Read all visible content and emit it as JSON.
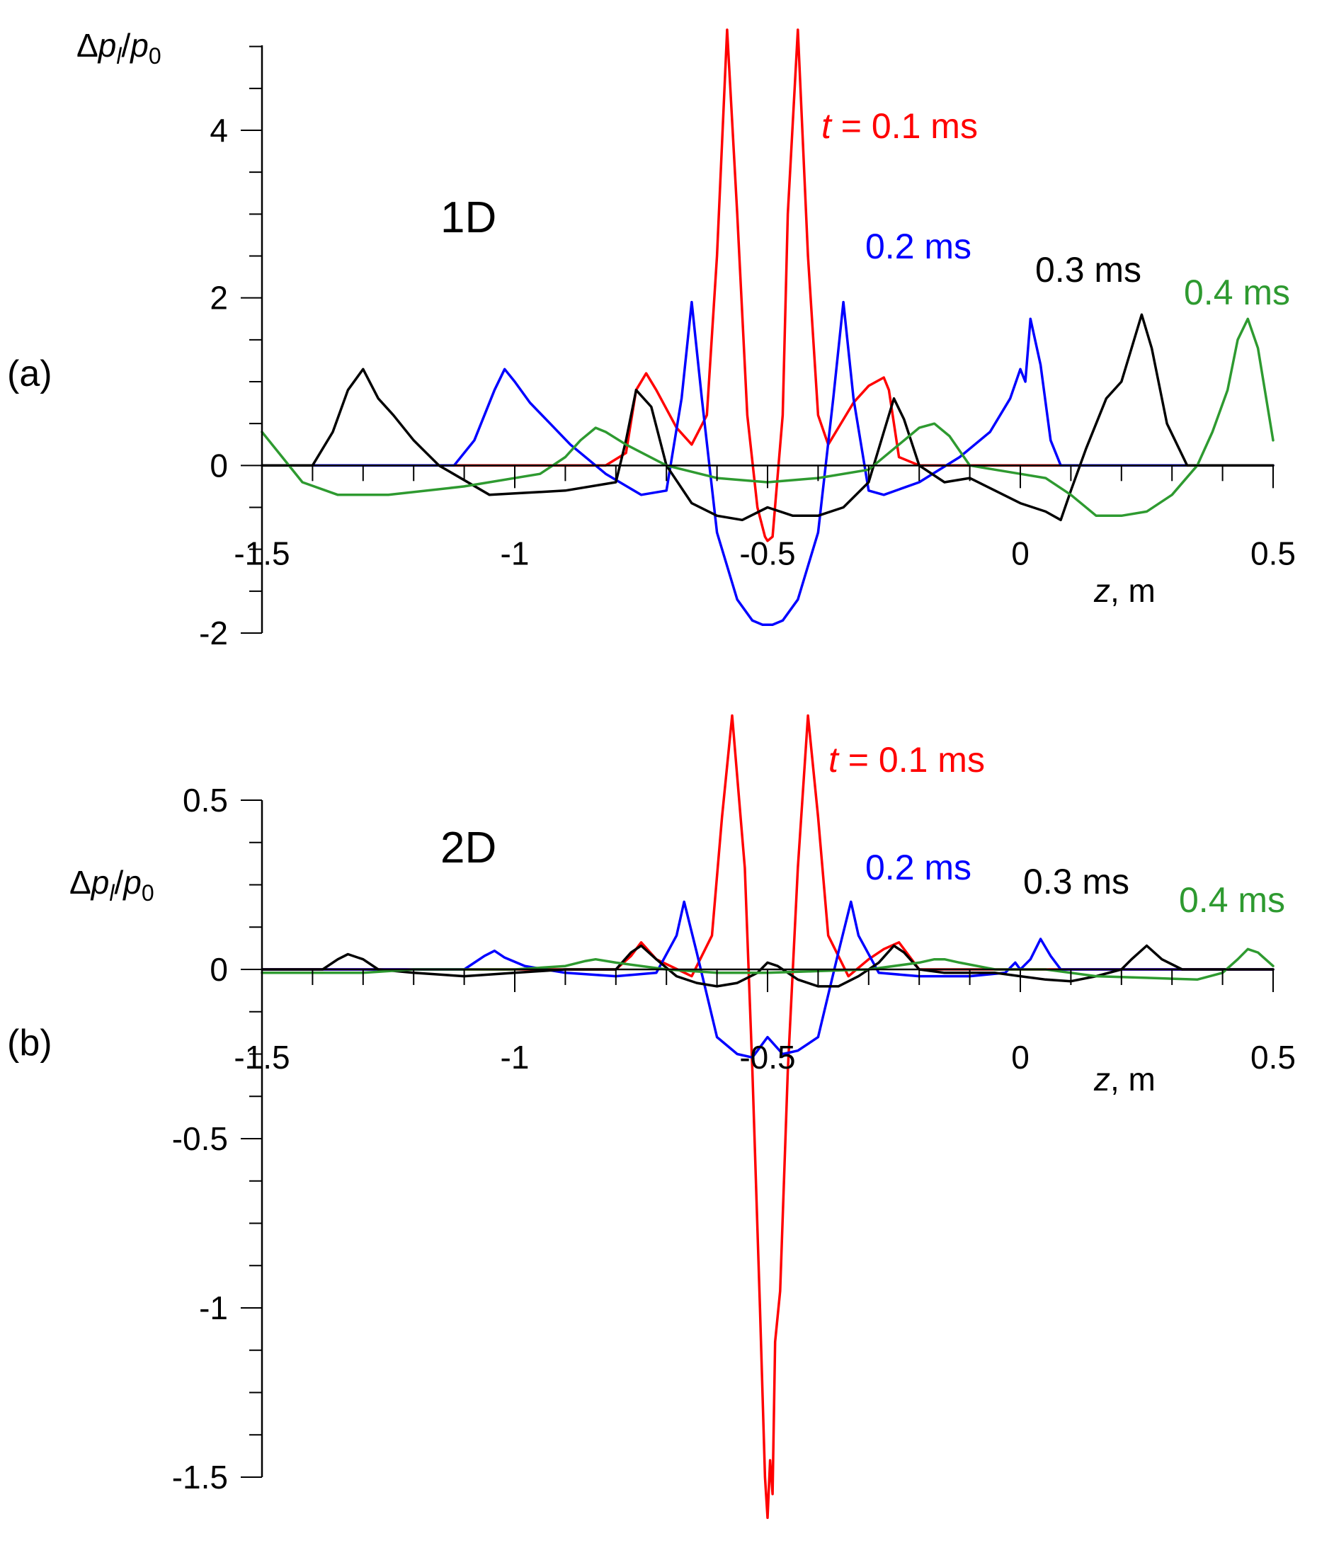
{
  "chart_data": [
    {
      "type": "line",
      "panel_label": "(a)",
      "dimension_label": "1D",
      "ylabel": "Δp_l/p_0",
      "ylabel_parts": {
        "delta": "Δ",
        "p": "p",
        "sub_l": "l",
        "slash": "/",
        "p0": "p",
        "sub_0": "0"
      },
      "xlabel_italic": "z",
      "xlabel_rest": ", m",
      "xlim": [
        -1.5,
        0.5
      ],
      "ylim": [
        -2,
        5
      ],
      "x_ticks": [
        -1.5,
        -1,
        -0.5,
        0,
        0.5
      ],
      "x_tick_labels": [
        "-1.5",
        "-1",
        "-0.5",
        "0",
        "0.5"
      ],
      "y_ticks": [
        -2,
        0,
        2,
        4
      ],
      "y_tick_labels": [
        "-2",
        "0",
        "2",
        "4"
      ],
      "series": [
        {
          "name": "t = 0.1 ms",
          "label_italic": "t",
          "label_rest": " = 0.1 ms",
          "color": "#ff0000",
          "x": [
            -1.5,
            -0.82,
            -0.78,
            -0.76,
            -0.74,
            -0.72,
            -0.68,
            -0.65,
            -0.62,
            -0.6,
            -0.58,
            -0.56,
            -0.54,
            -0.52,
            -0.505,
            -0.5,
            -0.49,
            -0.47,
            -0.46,
            -0.44,
            -0.42,
            -0.4,
            -0.38,
            -0.36,
            -0.33,
            -0.3,
            -0.27,
            -0.26,
            -0.24,
            -0.2,
            -0.1,
            0.0,
            0.1
          ],
          "y": [
            0,
            0,
            0.15,
            0.9,
            1.1,
            0.9,
            0.45,
            0.25,
            0.6,
            2.5,
            5.2,
            3.0,
            0.6,
            -0.5,
            -0.85,
            -0.9,
            -0.85,
            0.6,
            3.0,
            5.2,
            2.5,
            0.6,
            0.25,
            0.45,
            0.75,
            0.95,
            1.05,
            0.9,
            0.1,
            0,
            0,
            0,
            0
          ]
        },
        {
          "name": "0.2 ms",
          "label_italic": "",
          "label_rest": "0.2 ms",
          "color": "#0000ff",
          "x": [
            -1.5,
            -1.12,
            -1.08,
            -1.04,
            -1.02,
            -1.0,
            -0.97,
            -0.93,
            -0.89,
            -0.82,
            -0.75,
            -0.7,
            -0.67,
            -0.65,
            -0.63,
            -0.6,
            -0.56,
            -0.53,
            -0.51,
            -0.49,
            -0.47,
            -0.44,
            -0.4,
            -0.37,
            -0.35,
            -0.33,
            -0.3,
            -0.27,
            -0.2,
            -0.12,
            -0.06,
            -0.02,
            0.0,
            0.01,
            0.02,
            0.04,
            0.06,
            0.08,
            0.12,
            0.5
          ],
          "y": [
            0,
            0,
            0.3,
            0.9,
            1.15,
            1.0,
            0.75,
            0.5,
            0.25,
            -0.1,
            -0.35,
            -0.3,
            0.8,
            1.95,
            0.8,
            -0.8,
            -1.6,
            -1.85,
            -1.9,
            -1.9,
            -1.85,
            -1.6,
            -0.8,
            0.8,
            1.95,
            0.8,
            -0.3,
            -0.35,
            -0.2,
            0.1,
            0.4,
            0.8,
            1.15,
            1.0,
            1.75,
            1.2,
            0.3,
            0,
            0,
            0
          ]
        },
        {
          "name": "0.3 ms",
          "label_italic": "",
          "label_rest": "0.3 ms",
          "color": "#000000",
          "x": [
            -1.5,
            -1.4,
            -1.36,
            -1.33,
            -1.3,
            -1.27,
            -1.24,
            -1.2,
            -1.15,
            -1.05,
            -0.9,
            -0.8,
            -0.78,
            -0.76,
            -0.73,
            -0.7,
            -0.65,
            -0.6,
            -0.55,
            -0.5,
            -0.45,
            -0.4,
            -0.35,
            -0.3,
            -0.27,
            -0.25,
            -0.23,
            -0.2,
            -0.15,
            -0.1,
            -0.05,
            0.0,
            0.05,
            0.08,
            0.1,
            0.13,
            0.17,
            0.2,
            0.22,
            0.24,
            0.26,
            0.29,
            0.33,
            0.5
          ],
          "y": [
            0,
            0,
            0.4,
            0.9,
            1.15,
            0.8,
            0.6,
            0.3,
            0.0,
            -0.35,
            -0.3,
            -0.2,
            0.3,
            0.9,
            0.7,
            0.0,
            -0.45,
            -0.6,
            -0.65,
            -0.5,
            -0.6,
            -0.6,
            -0.5,
            -0.2,
            0.4,
            0.8,
            0.55,
            0.0,
            -0.2,
            -0.15,
            -0.3,
            -0.45,
            -0.55,
            -0.65,
            -0.3,
            0.2,
            0.8,
            1.0,
            1.4,
            1.8,
            1.4,
            0.5,
            0.0,
            0
          ]
        },
        {
          "name": "0.4 ms",
          "label_italic": "",
          "label_rest": "0.4 ms",
          "color": "#2e9a30",
          "x": [
            -1.5,
            -1.46,
            -1.42,
            -1.35,
            -1.25,
            -1.1,
            -0.95,
            -0.9,
            -0.87,
            -0.84,
            -0.82,
            -0.78,
            -0.7,
            -0.6,
            -0.5,
            -0.4,
            -0.3,
            -0.25,
            -0.2,
            -0.17,
            -0.14,
            -0.1,
            -0.05,
            0.0,
            0.05,
            0.1,
            0.15,
            0.2,
            0.25,
            0.3,
            0.35,
            0.38,
            0.41,
            0.43,
            0.45,
            0.47,
            0.5
          ],
          "y": [
            0.4,
            0.1,
            -0.2,
            -0.35,
            -0.35,
            -0.25,
            -0.1,
            0.1,
            0.3,
            0.45,
            0.4,
            0.25,
            0.0,
            -0.15,
            -0.2,
            -0.15,
            -0.05,
            0.2,
            0.45,
            0.5,
            0.35,
            0.0,
            -0.05,
            -0.1,
            -0.15,
            -0.35,
            -0.6,
            -0.6,
            -0.55,
            -0.35,
            0.0,
            0.4,
            0.9,
            1.5,
            1.75,
            1.4,
            0.3
          ]
        }
      ]
    },
    {
      "type": "line",
      "panel_label": "(b)",
      "dimension_label": "2D",
      "ylabel": "Δp_l/p_0",
      "ylabel_parts": {
        "delta": "Δ",
        "p": "p",
        "sub_l": "l",
        "slash": "/",
        "p0": "p",
        "sub_0": "0"
      },
      "xlabel_italic": "z",
      "xlabel_rest": ", m",
      "xlim": [
        -1.5,
        0.5
      ],
      "ylim": [
        -1.5,
        0.5
      ],
      "x_ticks": [
        -1.5,
        -1,
        -0.5,
        0,
        0.5
      ],
      "x_tick_labels": [
        "-1.5",
        "-1",
        "-0.5",
        "0",
        "0.5"
      ],
      "y_ticks": [
        -1.5,
        -1,
        -0.5,
        0,
        0.5
      ],
      "y_tick_labels": [
        "-1.5",
        "-1",
        "-0.5",
        "0",
        "0.5"
      ],
      "series": [
        {
          "name": "t = 0.1 ms",
          "label_italic": "t",
          "label_rest": " = 0.1 ms",
          "color": "#ff0000",
          "x": [
            -1.5,
            -0.8,
            -0.77,
            -0.75,
            -0.72,
            -0.65,
            -0.61,
            -0.59,
            -0.57,
            -0.545,
            -0.53,
            -0.515,
            -0.505,
            -0.5,
            -0.495,
            -0.49,
            -0.485,
            -0.475,
            -0.46,
            -0.44,
            -0.42,
            -0.4,
            -0.38,
            -0.34,
            -0.3,
            -0.27,
            -0.24,
            -0.22,
            -0.2,
            -0.1,
            0.0,
            0.5
          ],
          "y": [
            0,
            0,
            0.04,
            0.08,
            0.03,
            -0.02,
            0.1,
            0.45,
            0.75,
            0.3,
            -0.3,
            -1.0,
            -1.5,
            -1.62,
            -1.45,
            -1.55,
            -1.1,
            -0.95,
            -0.3,
            0.3,
            0.75,
            0.45,
            0.1,
            -0.02,
            0.03,
            0.06,
            0.08,
            0.04,
            0,
            0,
            0,
            0
          ]
        },
        {
          "name": "0.2 ms",
          "label_italic": "",
          "label_rest": "0.2 ms",
          "color": "#0000ff",
          "x": [
            -1.5,
            -1.1,
            -1.06,
            -1.04,
            -1.02,
            -0.98,
            -0.9,
            -0.8,
            -0.72,
            -0.68,
            -0.665,
            -0.64,
            -0.6,
            -0.56,
            -0.53,
            -0.5,
            -0.47,
            -0.44,
            -0.4,
            -0.36,
            -0.335,
            -0.32,
            -0.28,
            -0.2,
            -0.1,
            -0.03,
            -0.01,
            0.0,
            0.02,
            0.04,
            0.06,
            0.08,
            0.5
          ],
          "y": [
            0,
            0,
            0.04,
            0.055,
            0.035,
            0.01,
            -0.01,
            -0.02,
            -0.01,
            0.1,
            0.2,
            0.05,
            -0.2,
            -0.25,
            -0.26,
            -0.2,
            -0.25,
            -0.24,
            -0.2,
            0.05,
            0.2,
            0.1,
            -0.01,
            -0.02,
            -0.02,
            -0.01,
            0.02,
            0.0,
            0.03,
            0.09,
            0.04,
            0.0,
            0
          ]
        },
        {
          "name": "0.3 ms",
          "label_italic": "",
          "label_rest": "0.3 ms",
          "color": "#000000",
          "x": [
            -1.5,
            -1.38,
            -1.35,
            -1.33,
            -1.3,
            -1.27,
            -1.2,
            -1.1,
            -1.0,
            -0.9,
            -0.8,
            -0.77,
            -0.75,
            -0.72,
            -0.68,
            -0.64,
            -0.6,
            -0.56,
            -0.52,
            -0.5,
            -0.48,
            -0.44,
            -0.4,
            -0.36,
            -0.32,
            -0.28,
            -0.25,
            -0.23,
            -0.2,
            -0.15,
            -0.1,
            -0.05,
            0.0,
            0.05,
            0.1,
            0.15,
            0.2,
            0.22,
            0.25,
            0.28,
            0.32,
            0.5
          ],
          "y": [
            0,
            0,
            0.03,
            0.045,
            0.03,
            0.0,
            -0.01,
            -0.02,
            -0.01,
            0.0,
            0.0,
            0.05,
            0.07,
            0.03,
            -0.02,
            -0.04,
            -0.05,
            -0.04,
            -0.01,
            0.02,
            0.01,
            -0.03,
            -0.05,
            -0.05,
            -0.02,
            0.02,
            0.07,
            0.05,
            0.0,
            -0.01,
            -0.01,
            -0.01,
            -0.02,
            -0.03,
            -0.035,
            -0.02,
            0.0,
            0.03,
            0.07,
            0.03,
            0.0,
            0
          ]
        },
        {
          "name": "0.4 ms",
          "label_italic": "",
          "label_rest": "0.4 ms",
          "color": "#2e9a30",
          "x": [
            -1.5,
            -1.4,
            -1.3,
            -1.2,
            -1.1,
            -1.0,
            -0.9,
            -0.86,
            -0.84,
            -0.8,
            -0.7,
            -0.6,
            -0.5,
            -0.4,
            -0.3,
            -0.2,
            -0.17,
            -0.15,
            -0.12,
            -0.05,
            0.05,
            0.15,
            0.25,
            0.35,
            0.4,
            0.43,
            0.45,
            0.47,
            0.5
          ],
          "y": [
            -0.01,
            -0.01,
            -0.01,
            0.0,
            0.0,
            0.0,
            0.01,
            0.025,
            0.03,
            0.02,
            0.0,
            -0.01,
            -0.01,
            -0.005,
            0.0,
            0.02,
            0.03,
            0.03,
            0.02,
            0.0,
            0.0,
            -0.02,
            -0.025,
            -0.03,
            -0.01,
            0.03,
            0.06,
            0.05,
            0.01
          ]
        }
      ]
    }
  ]
}
